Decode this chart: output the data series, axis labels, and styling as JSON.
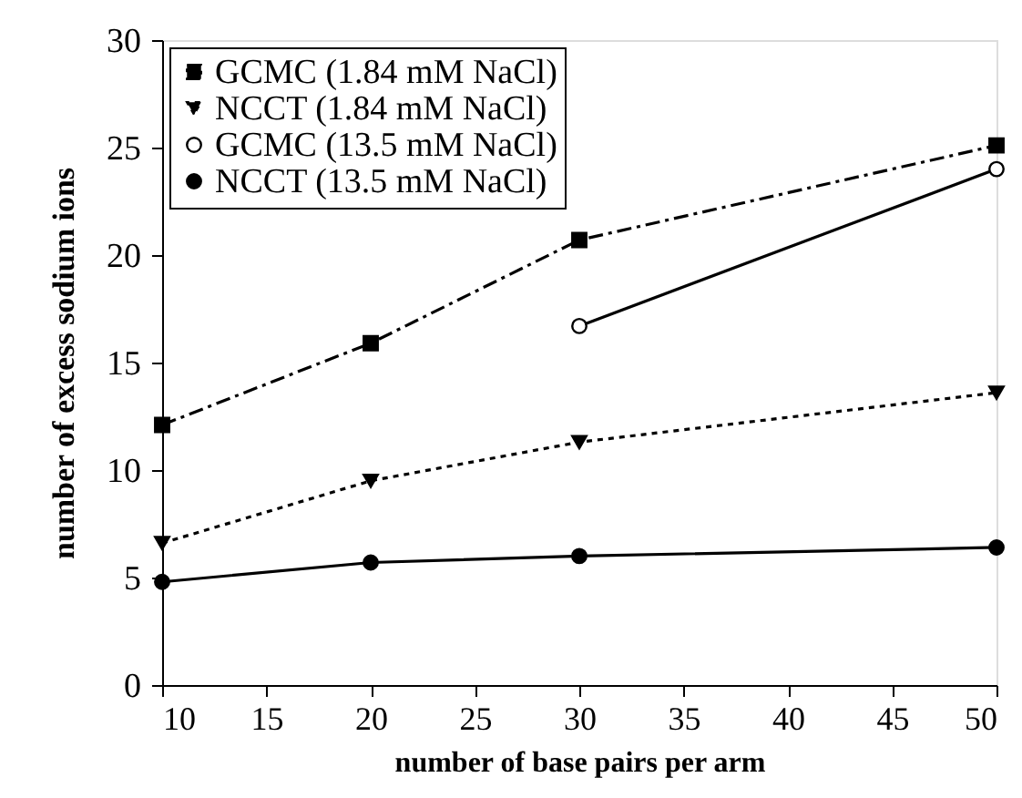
{
  "chart_data": {
    "type": "line",
    "xlabel": "number of base pairs per arm",
    "ylabel": "number of excess sodium ions",
    "xlim": [
      10,
      50
    ],
    "xticks": [
      10,
      15,
      20,
      25,
      30,
      35,
      40,
      45,
      50
    ],
    "ylim": [
      0,
      30
    ],
    "yticks": [
      0,
      5,
      10,
      15,
      20,
      25,
      30
    ],
    "grid": false,
    "legend": "top left",
    "series": [
      {
        "name": "GCMC (1.84 mM NaCl)",
        "color": "#000000",
        "x": [
          10,
          20,
          30,
          50
        ],
        "values": [
          12.1,
          15.9,
          20.7,
          25.1
        ],
        "marker": "square",
        "line_style": "dashdot"
      },
      {
        "name": "NCCT (1.84 mM NaCl)",
        "color": "#000000",
        "x": [
          10,
          20,
          30,
          50
        ],
        "values": [
          6.6,
          9.5,
          11.3,
          13.6
        ],
        "marker": "triangle-down",
        "line_style": "dotted"
      },
      {
        "name": "GCMC (13.5 mM NaCl)",
        "color": "#000000",
        "x": [
          30,
          50
        ],
        "values": [
          16.7,
          24.0
        ],
        "marker": "circle_open",
        "line_style": "solid"
      },
      {
        "name": "NCCT (13.5 mM NaCl)",
        "color": "#000000",
        "x": [
          10,
          20,
          30,
          50
        ],
        "values": [
          4.8,
          5.7,
          6.0,
          6.4
        ],
        "marker": "circle",
        "line_style": "solid"
      }
    ]
  }
}
